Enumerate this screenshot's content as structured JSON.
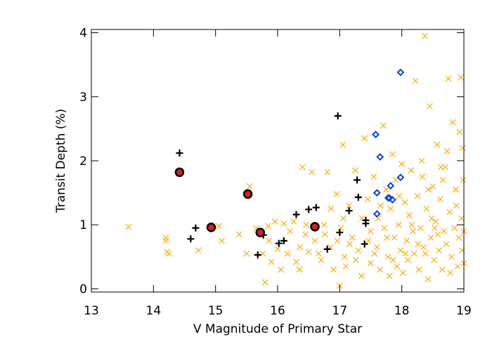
{
  "chart_data": {
    "type": "scatter",
    "xlabel": "V Magnitude of Primary Star",
    "ylabel": "Transit Depth (%)",
    "xlim": [
      13,
      19
    ],
    "xticks": [
      13,
      14,
      15,
      16,
      17,
      18,
      19
    ],
    "ylim": [
      -0.05,
      4.05
    ],
    "yticks": [
      0,
      1,
      2,
      3,
      4
    ],
    "series": [
      {
        "marker": "x",
        "color": "#ffa500",
        "x": [
          13.6,
          14.2,
          14.22,
          14.25,
          14.2,
          14.72,
          15.05,
          15.1,
          15.38,
          15.55,
          15.5,
          15.8,
          15.85,
          15.9,
          16.0,
          16.05,
          16.1,
          16.2,
          16.3,
          16.35,
          16.4,
          16.45,
          16.5,
          16.55,
          16.6,
          16.7,
          16.75,
          16.8,
          16.85,
          16.9,
          16.95,
          17.0,
          17.02,
          17.05,
          17.08,
          17.1,
          17.15,
          17.2,
          17.25,
          17.3,
          17.35,
          17.4,
          17.45,
          17.5,
          17.5,
          17.55,
          17.6,
          17.62,
          17.65,
          17.7,
          17.72,
          17.75,
          17.78,
          17.8,
          17.82,
          17.85,
          17.88,
          17.9,
          17.92,
          17.95,
          17.98,
          18.0,
          18.02,
          18.05,
          18.08,
          18.1,
          18.12,
          18.15,
          18.18,
          18.2,
          18.22,
          18.25,
          18.28,
          18.3,
          18.32,
          18.35,
          18.37,
          18.4,
          18.42,
          18.45,
          18.47,
          18.5,
          18.52,
          18.55,
          18.57,
          18.6,
          18.62,
          18.65,
          18.68,
          18.7,
          18.72,
          18.75,
          18.77,
          18.8,
          18.82,
          18.85,
          18.87,
          18.9,
          18.92,
          18.95,
          18.96,
          18.97,
          18.98,
          18.99,
          19.0,
          19.0,
          18.88,
          18.78,
          18.66,
          18.58,
          18.48,
          18.38,
          18.26,
          18.16,
          18.06,
          17.96,
          17.86,
          17.76,
          17.66,
          17.56,
          17.46,
          17.36,
          17.26,
          17.16,
          17.06,
          16.96,
          16.86,
          16.76,
          16.66,
          16.46,
          16.36,
          16.26,
          16.16,
          15.96,
          15.86,
          15.76,
          15.66,
          18.93,
          18.73,
          18.63,
          18.53,
          18.43,
          18.33
        ],
        "values": [
          0.97,
          0.8,
          0.58,
          0.55,
          0.75,
          0.6,
          0.98,
          0.75,
          0.85,
          1.6,
          0.55,
          0.1,
          0.98,
          0.42,
          0.62,
          0.3,
          1.02,
          0.9,
          0.42,
          0.3,
          1.9,
          0.85,
          0.58,
          1.82,
          0.75,
          0.45,
          1.0,
          1.82,
          0.65,
          0.3,
          1.48,
          0.05,
          0.95,
          2.25,
          0.5,
          0.35,
          1.3,
          0.8,
          1.85,
          0.6,
          0.2,
          2.35,
          1.4,
          0.9,
          0.4,
          1.75,
          0.65,
          1.1,
          0.3,
          2.55,
          0.95,
          1.55,
          0.5,
          0.2,
          1.25,
          2.1,
          0.8,
          1.7,
          0.35,
          1.0,
          0.6,
          1.95,
          0.25,
          1.35,
          0.75,
          0.45,
          1.15,
          1.85,
          0.9,
          0.55,
          3.25,
          1.45,
          0.3,
          0.95,
          2.0,
          0.65,
          3.95,
          1.25,
          0.15,
          2.85,
          0.8,
          1.6,
          0.45,
          1.05,
          2.25,
          0.6,
          1.4,
          0.3,
          0.9,
          1.9,
          0.7,
          3.28,
          1.2,
          0.5,
          2.6,
          0.95,
          1.55,
          0.35,
          0.8,
          3.3,
          1.1,
          0.6,
          2.2,
          1.7,
          0.9,
          0.4,
          1.3,
          0.25,
          1.7,
          0.85,
          1.1,
          0.55,
          0.7,
          1.0,
          0.55,
          1.45,
          0.45,
          0.8,
          1.3,
          0.55,
          0.75,
          1.1,
          0.45,
          0.7,
          1.1,
          0.75,
          1.25,
          0.85,
          0.55,
          1.0,
          0.65,
          1.05,
          0.55,
          1.05,
          0.75,
          0.55,
          0.95,
          2.45,
          2.15,
          1.9,
          0.95,
          1.55,
          1.75
        ]
      },
      {
        "marker": "plus",
        "color": "#000000",
        "x": [
          14.42,
          14.6,
          14.68,
          15.68,
          15.77,
          16.02,
          16.1,
          16.3,
          16.5,
          16.62,
          16.8,
          16.97,
          17.0,
          17.15,
          17.28,
          17.3,
          17.42,
          17.42,
          17.4
        ],
        "values": [
          2.12,
          0.78,
          0.95,
          0.53,
          0.84,
          0.71,
          0.75,
          1.16,
          1.24,
          1.27,
          0.62,
          2.7,
          0.88,
          1.22,
          1.7,
          1.43,
          1.02,
          1.07,
          0.7
        ]
      },
      {
        "marker": "diamond",
        "color": "#1040e0",
        "x": [
          17.58,
          17.65,
          17.98,
          17.82,
          17.6,
          17.8,
          17.85,
          17.6,
          17.98,
          17.78
        ],
        "values": [
          2.41,
          2.06,
          3.38,
          1.61,
          1.5,
          1.42,
          1.39,
          1.17,
          1.74,
          1.42
        ]
      },
      {
        "marker": "circle",
        "color": "#d42020",
        "edgecolor": "#000000",
        "x": [
          14.42,
          14.93,
          15.52,
          15.72,
          16.6
        ],
        "values": [
          1.82,
          0.96,
          1.48,
          0.88,
          0.97
        ]
      }
    ]
  }
}
